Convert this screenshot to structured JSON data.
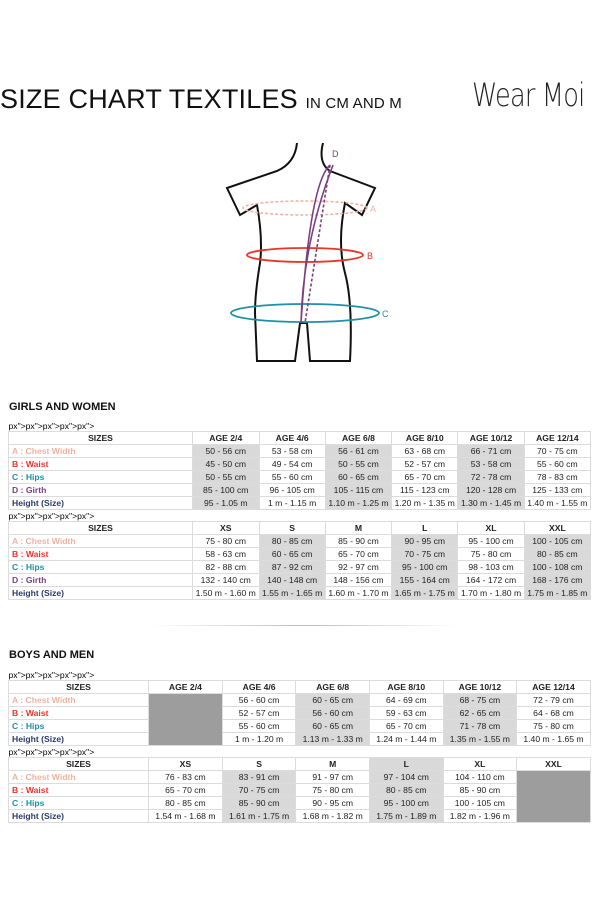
{
  "header": {
    "title": "SIZE CHART TEXTILES",
    "subtitle": "IN CM AND M",
    "logo": "Wear Moi"
  },
  "figure": {
    "labels": {
      "a": "A",
      "b": "B",
      "c": "C",
      "d": "D"
    }
  },
  "colors": {
    "chest": "#f0b3a3",
    "waist": "#e8352a",
    "hips": "#1f8fa9",
    "girth": "#7b3f80",
    "height": "#2c3a66",
    "shade": "#d9d9d9",
    "dark": "#9d9d9d"
  },
  "girls": {
    "title": "GIRLS AND WOMEN",
    "tables": [
      {
        "header": [
          "SIZES",
          "AGE 2/4",
          "AGE 4/6",
          "AGE 6/8",
          "AGE 8/10",
          "AGE 10/12",
          "AGE 12/14"
        ],
        "rows": [
          {
            "label": "A : Chest Width",
            "key": "chest",
            "cells": [
              "50 - 56 cm",
              "53 - 58 cm",
              "56 - 61 cm",
              "63 - 68 cm",
              "66 - 71 cm",
              "70 - 75 cm"
            ]
          },
          {
            "label": "B : Waist",
            "key": "waist",
            "cells": [
              "45 - 50 cm",
              "49 - 54 cm",
              "50 - 55 cm",
              "52 - 57 cm",
              "53 - 58 cm",
              "55 - 60 cm"
            ]
          },
          {
            "label": "C : Hips",
            "key": "hips",
            "cells": [
              "50 - 55 cm",
              "55 - 60 cm",
              "60 - 65 cm",
              "65 - 70 cm",
              "72 - 78 cm",
              "78 - 83 cm"
            ]
          },
          {
            "label": "D : Girth",
            "key": "girth",
            "cells": [
              "85 - 100 cm",
              "96 - 105 cm",
              "105 - 115 cm",
              "115 - 123 cm",
              "120 - 128 cm",
              "125 - 133 cm"
            ]
          },
          {
            "label": "Height (Size)",
            "key": "height",
            "cells": [
              "95 - 1.05 m",
              "1 m - 1.15 m",
              "1.10 m - 1.25 m",
              "1.20 m - 1.35 m",
              "1.30 m - 1.45 m",
              "1.40 m - 1.55 m"
            ]
          }
        ]
      },
      {
        "header": [
          "SIZES",
          "XS",
          "S",
          "M",
          "L",
          "XL",
          "XXL"
        ],
        "rows": [
          {
            "label": "A : Chest Width",
            "key": "chest",
            "cells": [
              "75 - 80 cm",
              "80 - 85 cm",
              "85 - 90 cm",
              "90 - 95 cm",
              "95 - 100 cm",
              "100 - 105 cm"
            ]
          },
          {
            "label": "B : Waist",
            "key": "waist",
            "cells": [
              "58 - 63 cm",
              "60 - 65 cm",
              "65 - 70 cm",
              "70 - 75 cm",
              "75 - 80 cm",
              "80 - 85 cm"
            ]
          },
          {
            "label": "C : Hips",
            "key": "hips",
            "cells": [
              "82 - 88 cm",
              "87 - 92 cm",
              "92 - 97 cm",
              "95 - 100 cm",
              "98 - 103 cm",
              "100 - 108 cm"
            ]
          },
          {
            "label": "D : Girth",
            "key": "girth",
            "cells": [
              "132 - 140 cm",
              "140 - 148 cm",
              "148 - 156 cm",
              "155 - 164 cm",
              "164 - 172 cm",
              "168 - 176 cm"
            ]
          },
          {
            "label": "Height (Size)",
            "key": "height",
            "cells": [
              "1.50 m - 1.60 m",
              "1.55 m - 1.65 m",
              "1.60 m - 1.70 m",
              "1.65 m - 1.75 m",
              "1.70 m - 1.80 m",
              "1.75 m - 1.85 m"
            ]
          }
        ]
      }
    ]
  },
  "boys": {
    "title": "BOYS AND MEN",
    "tables": [
      {
        "header": [
          "SIZES",
          "AGE 2/4",
          "AGE 4/6",
          "AGE 6/8",
          "AGE 8/10",
          "AGE 10/12",
          "AGE 12/14"
        ],
        "rows": [
          {
            "label": "A : Chest Width",
            "key": "chest",
            "cells": [
              "",
              "56 - 60 cm",
              "60 - 65 cm",
              "64 - 69 cm",
              "68 - 75 cm",
              "72 - 79 cm"
            ]
          },
          {
            "label": "B : Waist",
            "key": "waist",
            "cells": [
              "",
              "52 - 57 cm",
              "56 - 60 cm",
              "59 - 63 cm",
              "62 - 65 cm",
              "64 - 68 cm"
            ]
          },
          {
            "label": "C : Hips",
            "key": "hips",
            "cells": [
              "",
              "55 - 60 cm",
              "60 - 65 cm",
              "65 - 70 cm",
              "71 - 78 cm",
              "75 - 80 cm"
            ]
          },
          {
            "label": "Height (Size)",
            "key": "height",
            "cells": [
              "",
              "1 m - 1.20 m",
              "1.13 m - 1.33 m",
              "1.24 m - 1.44 m",
              "1.35 m - 1.55 m",
              "1.40 m - 1.65 m"
            ]
          }
        ]
      },
      {
        "header": [
          "SIZES",
          "XS",
          "S",
          "M",
          "L",
          "XL",
          "XXL"
        ],
        "rows": [
          {
            "label": "A : Chest Width",
            "key": "chest",
            "cells": [
              "76 - 83 cm",
              "83 - 91 cm",
              "91 - 97 cm",
              "97 - 104 cm",
              "104 - 110 cm",
              ""
            ]
          },
          {
            "label": "B : Waist",
            "key": "waist",
            "cells": [
              "65 - 70 cm",
              "70 - 75 cm",
              "75 - 80 cm",
              "80 - 85 cm",
              "85 - 90 cm",
              ""
            ]
          },
          {
            "label": "C : Hips",
            "key": "hips",
            "cells": [
              "80 - 85 cm",
              "85 - 90 cm",
              "90 - 95 cm",
              "95 - 100 cm",
              "100 - 105 cm",
              ""
            ]
          },
          {
            "label": "Height (Size)",
            "key": "height",
            "cells": [
              "1.54 m - 1.68 m",
              "1.61 m - 1.75 m",
              "1.68 m - 1.82 m",
              "1.75 m - 1.89 m",
              "1.82 m - 1.96 m",
              ""
            ]
          }
        ]
      }
    ]
  }
}
